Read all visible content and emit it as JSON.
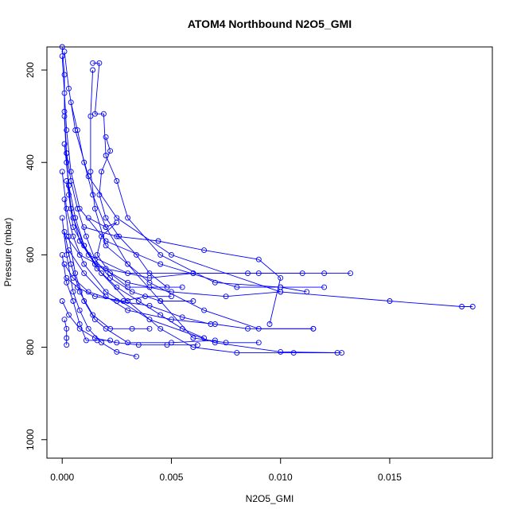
{
  "chart_data": {
    "type": "line",
    "title": "ATOM4 Northbound N2O5_GMI",
    "xlabel": "N2O5_GMI",
    "ylabel": "Pressure (mbar)",
    "xlim": [
      -0.0007,
      0.0197
    ],
    "ylim": [
      1040,
      150
    ],
    "y_reversed": true,
    "x_ticks": [
      0.0,
      0.005,
      0.01,
      0.015
    ],
    "x_tick_labels": [
      "0.000",
      "0.005",
      "0.010",
      "0.015"
    ],
    "y_ticks": [
      200,
      400,
      600,
      800,
      1000
    ],
    "y_tick_labels": [
      "200",
      "400",
      "600",
      "800",
      "1000"
    ],
    "color": "#0000ff",
    "marker": "open-circle",
    "series": [
      {
        "points": [
          [
            0.0,
            150
          ],
          [
            0.0001,
            210
          ],
          [
            0.0001,
            290
          ],
          [
            0.0002,
            380
          ],
          [
            0.0003,
            470
          ],
          [
            0.0005,
            540
          ],
          [
            0.0012,
            600
          ],
          [
            0.003,
            640
          ],
          [
            0.006,
            640
          ],
          [
            0.009,
            640
          ],
          [
            0.012,
            640
          ],
          [
            0.0132,
            640
          ]
        ]
      },
      {
        "points": [
          [
            0.0,
            170
          ],
          [
            0.0001,
            250
          ],
          [
            0.0002,
            330
          ],
          [
            0.0004,
            420
          ],
          [
            0.0008,
            500
          ],
          [
            0.002,
            570
          ],
          [
            0.0045,
            620
          ],
          [
            0.008,
            670
          ],
          [
            0.01,
            670
          ],
          [
            0.0112,
            680
          ]
        ]
      },
      {
        "points": [
          [
            0.0001,
            160
          ],
          [
            0.0003,
            240
          ],
          [
            0.0006,
            330
          ],
          [
            0.0012,
            430
          ],
          [
            0.0025,
            520
          ],
          [
            0.005,
            600
          ],
          [
            0.01,
            680
          ],
          [
            0.015,
            700
          ],
          [
            0.0183,
            712
          ],
          [
            0.0188,
            712
          ]
        ]
      },
      {
        "points": [
          [
            0.0014,
            185
          ],
          [
            0.0017,
            185
          ],
          [
            0.0015,
            295
          ],
          [
            0.0019,
            295
          ],
          [
            0.002,
            385
          ],
          [
            0.0025,
            440
          ],
          [
            0.003,
            520
          ],
          [
            0.0045,
            600
          ],
          [
            0.007,
            660
          ],
          [
            0.01,
            670
          ],
          [
            0.012,
            670
          ]
        ]
      },
      {
        "points": [
          [
            0.0014,
            200
          ],
          [
            0.0013,
            300
          ],
          [
            0.0013,
            420
          ],
          [
            0.0015,
            500
          ],
          [
            0.002,
            580
          ],
          [
            0.004,
            660
          ],
          [
            0.0065,
            720
          ],
          [
            0.009,
            760
          ],
          [
            0.0115,
            760
          ]
        ]
      },
      {
        "points": [
          [
            0.0004,
            270
          ],
          [
            0.0007,
            330
          ],
          [
            0.001,
            400
          ],
          [
            0.0014,
            470
          ],
          [
            0.002,
            540
          ],
          [
            0.003,
            620
          ],
          [
            0.0045,
            700
          ],
          [
            0.006,
            780
          ],
          [
            0.0075,
            790
          ],
          [
            0.009,
            790
          ]
        ]
      },
      {
        "points": [
          [
            0.0001,
            300
          ],
          [
            0.0002,
            400
          ],
          [
            0.0004,
            500
          ],
          [
            0.0008,
            570
          ],
          [
            0.0015,
            620
          ],
          [
            0.003,
            660
          ],
          [
            0.005,
            680
          ],
          [
            0.0075,
            690
          ],
          [
            0.01,
            680
          ]
        ]
      },
      {
        "points": [
          [
            0.0001,
            360
          ],
          [
            0.0003,
            450
          ],
          [
            0.0006,
            520
          ],
          [
            0.001,
            580
          ],
          [
            0.0016,
            630
          ],
          [
            0.0025,
            670
          ],
          [
            0.0035,
            700
          ],
          [
            0.0045,
            730
          ],
          [
            0.0055,
            760
          ],
          [
            0.0065,
            780
          ]
        ]
      },
      {
        "points": [
          [
            0.0,
            420
          ],
          [
            0.0002,
            500
          ],
          [
            0.0005,
            560
          ],
          [
            0.001,
            620
          ],
          [
            0.002,
            680
          ],
          [
            0.004,
            740
          ],
          [
            0.007,
            790
          ],
          [
            0.01,
            810
          ],
          [
            0.0128,
            812
          ]
        ]
      },
      {
        "points": [
          [
            0.0002,
            440
          ],
          [
            0.0005,
            520
          ],
          [
            0.001,
            580
          ],
          [
            0.0018,
            640
          ],
          [
            0.003,
            700
          ],
          [
            0.0045,
            760
          ],
          [
            0.006,
            800
          ],
          [
            0.008,
            812
          ],
          [
            0.0106,
            812
          ],
          [
            0.0126,
            812
          ]
        ]
      },
      {
        "points": [
          [
            0.0001,
            480
          ],
          [
            0.0003,
            560
          ],
          [
            0.0006,
            640
          ],
          [
            0.001,
            700
          ],
          [
            0.0015,
            740
          ],
          [
            0.002,
            760
          ],
          [
            0.003,
            790
          ],
          [
            0.005,
            790
          ],
          [
            0.007,
            785
          ]
        ]
      },
      {
        "points": [
          [
            0.0,
            520
          ],
          [
            0.0002,
            600
          ],
          [
            0.0005,
            680
          ],
          [
            0.0008,
            720
          ],
          [
            0.0012,
            760
          ],
          [
            0.0018,
            790
          ],
          [
            0.0025,
            810
          ],
          [
            0.0034,
            820
          ]
        ]
      },
      {
        "points": [
          [
            0.0001,
            550
          ],
          [
            0.0004,
            620
          ],
          [
            0.0008,
            680
          ],
          [
            0.0014,
            730
          ],
          [
            0.0022,
            760
          ],
          [
            0.0032,
            760
          ],
          [
            0.004,
            760
          ]
        ]
      },
      {
        "points": [
          [
            0.0,
            600
          ],
          [
            0.0002,
            660
          ],
          [
            0.0005,
            700
          ],
          [
            0.0008,
            750
          ],
          [
            0.0011,
            785
          ],
          [
            0.0016,
            785
          ],
          [
            0.0022,
            785
          ]
        ]
      },
      {
        "points": [
          [
            0.0002,
            560
          ],
          [
            0.0008,
            600
          ],
          [
            0.002,
            630
          ],
          [
            0.004,
            650
          ],
          [
            0.006,
            640
          ],
          [
            0.0085,
            640
          ],
          [
            0.011,
            640
          ]
        ]
      },
      {
        "points": [
          [
            0.001,
            540
          ],
          [
            0.0025,
            560
          ],
          [
            0.0044,
            570
          ],
          [
            0.0065,
            590
          ],
          [
            0.009,
            610
          ],
          [
            0.01,
            650
          ],
          [
            0.0095,
            750
          ]
        ]
      },
      {
        "points": [
          [
            0.0003,
            590
          ],
          [
            0.001,
            640
          ],
          [
            0.002,
            690
          ],
          [
            0.003,
            720
          ],
          [
            0.005,
            740
          ],
          [
            0.007,
            750
          ],
          [
            0.0085,
            760
          ],
          [
            0.0115,
            760
          ]
        ]
      },
      {
        "points": [
          [
            0.0001,
            620
          ],
          [
            0.0005,
            650
          ],
          [
            0.0012,
            680
          ],
          [
            0.0025,
            700
          ],
          [
            0.004,
            710
          ],
          [
            0.0055,
            735
          ],
          [
            0.0068,
            750
          ]
        ]
      },
      {
        "points": [
          [
            0.0002,
            650
          ],
          [
            0.0007,
            670
          ],
          [
            0.0015,
            690
          ],
          [
            0.0028,
            700
          ],
          [
            0.0038,
            690
          ],
          [
            0.005,
            690
          ]
        ]
      },
      {
        "points": [
          [
            0.0,
            700
          ],
          [
            0.0003,
            730
          ],
          [
            0.0008,
            760
          ],
          [
            0.0015,
            780
          ],
          [
            0.0025,
            790
          ],
          [
            0.0035,
            795
          ],
          [
            0.0048,
            795
          ],
          [
            0.0062,
            795
          ]
        ]
      },
      {
        "points": [
          [
            0.0001,
            740
          ],
          [
            0.0002,
            760
          ],
          [
            0.0002,
            780
          ],
          [
            0.0002,
            795
          ]
        ]
      },
      {
        "points": [
          [
            0.0012,
            520
          ],
          [
            0.002,
            540
          ],
          [
            0.0025,
            530
          ],
          [
            0.0018,
            560
          ],
          [
            0.0016,
            600
          ],
          [
            0.0022,
            640
          ],
          [
            0.003,
            670
          ],
          [
            0.004,
            670
          ],
          [
            0.0055,
            670
          ]
        ]
      },
      {
        "points": [
          [
            0.002,
            345
          ],
          [
            0.0022,
            375
          ],
          [
            0.0018,
            420
          ],
          [
            0.0017,
            470
          ],
          [
            0.002,
            520
          ],
          [
            0.0026,
            560
          ],
          [
            0.0034,
            600
          ],
          [
            0.004,
            640
          ],
          [
            0.0048,
            670
          ]
        ]
      },
      {
        "points": [
          [
            0.0002,
            380
          ],
          [
            0.0004,
            440
          ],
          [
            0.0007,
            500
          ],
          [
            0.0011,
            560
          ],
          [
            0.0015,
            610
          ],
          [
            0.0022,
            650
          ],
          [
            0.0032,
            680
          ],
          [
            0.0045,
            700
          ],
          [
            0.006,
            700
          ]
        ]
      }
    ]
  }
}
